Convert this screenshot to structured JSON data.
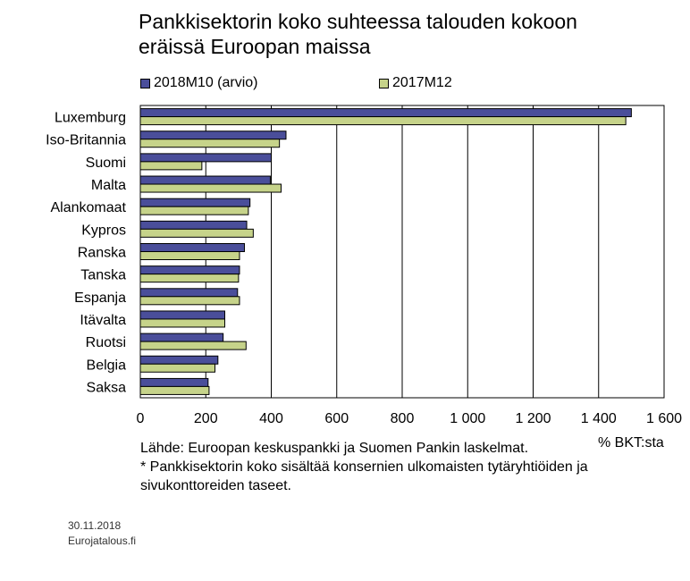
{
  "title_line1": "Pankkisektorin koko suhteessa talouden kokoon",
  "title_line2": "eräissä Euroopan maissa",
  "colors": {
    "series1": "#4a4e9a",
    "series2": "#c6d38a",
    "grid": "#000000"
  },
  "chart_data": {
    "type": "bar",
    "orientation": "horizontal",
    "categories": [
      "Luxemburg",
      "Iso-Britannia",
      "Suomi",
      "Malta",
      "Alankomaat",
      "Kypros",
      "Ranska",
      "Tanska",
      "Espanja",
      "Itävalta",
      "Ruotsi",
      "Belgia",
      "Saksa"
    ],
    "series": [
      {
        "name": "2018M10 (arvio)",
        "values": [
          1500,
          445,
          400,
          397,
          335,
          325,
          318,
          303,
          297,
          258,
          253,
          237,
          207
        ]
      },
      {
        "name": "2017M12",
        "values": [
          1483,
          425,
          188,
          430,
          330,
          345,
          303,
          300,
          303,
          258,
          323,
          228,
          210
        ]
      }
    ],
    "xlim": [
      0,
      1600
    ],
    "xticks": [
      0,
      200,
      400,
      600,
      800,
      1000,
      1200,
      1400,
      1600
    ],
    "xtick_labels": [
      "0",
      "200",
      "400",
      "600",
      "800",
      "1 000",
      "1 200",
      "1 400",
      "1 600"
    ],
    "unit_label": "% BKT:sta",
    "grid": "vertical",
    "legend_position": "top"
  },
  "source_line1": "Lähde: Euroopan keskuspankki ja Suomen Pankin laskelmat.",
  "source_line2": "* Pankkisektorin koko sisältää konsernien ulkomaisten tytäryhtiöiden ja",
  "source_line3": "sivukonttoreiden taseet.",
  "footer_date": "30.11.2018",
  "footer_site": "Eurojatalous.fi"
}
